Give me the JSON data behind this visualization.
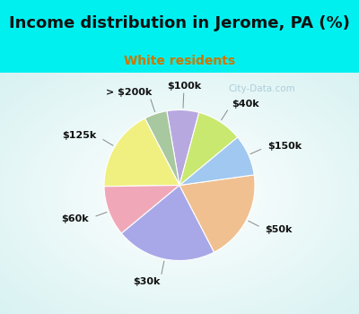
{
  "title": "Income distribution in Jerome, PA (%)",
  "subtitle": "White residents",
  "title_color": "#111111",
  "subtitle_color": "#cc7700",
  "bg_cyan": "#00f0f0",
  "watermark": "City-Data.com",
  "labels": [
    "$100k",
    "> $200k",
    "$125k",
    "$60k",
    "$30k",
    "$50k",
    "$150k",
    "$40k"
  ],
  "sizes": [
    7,
    5,
    18,
    11,
    22,
    20,
    9,
    10
  ],
  "colors": [
    "#b8a8e0",
    "#a8c8a0",
    "#f0f080",
    "#f0a8b8",
    "#a8a8e8",
    "#f0c090",
    "#a0c8f0",
    "#c8e870"
  ],
  "start_angle": 75,
  "figsize": [
    4.0,
    3.5
  ],
  "dpi": 100,
  "title_fontsize": 13,
  "subtitle_fontsize": 10,
  "label_fontsize": 8
}
